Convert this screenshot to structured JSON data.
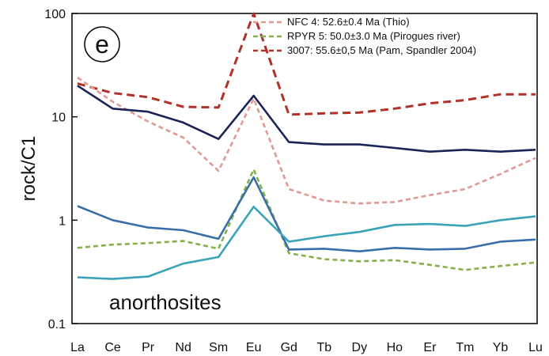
{
  "chart_data": {
    "type": "line",
    "panel_label": "e",
    "ylabel": "rock/C1",
    "xlabel": "",
    "yscale": "log",
    "ylim": [
      0.1,
      100
    ],
    "ytick_values": [
      0.1,
      1,
      10,
      100
    ],
    "ytick_labels": [
      "0.1",
      "1",
      "10",
      "100"
    ],
    "categories": [
      "La",
      "Ce",
      "Pr",
      "Nd",
      "Sm",
      "Eu",
      "Gd",
      "Tb",
      "Dy",
      "Ho",
      "Er",
      "Tm",
      "Yb",
      "Lu"
    ],
    "annotation": "anorthosites",
    "legend_position": "top-right",
    "grid": false,
    "series": [
      {
        "name": "NFC 4: 52.6±0.4 Ma (Thio)",
        "color": "#e09a94",
        "style": "dashed",
        "values": [
          24,
          14,
          9,
          6.3,
          3,
          15,
          2,
          1.55,
          1.45,
          1.5,
          1.75,
          2,
          2.8,
          4
        ]
      },
      {
        "name": "RPYR 5: 50.0±3.0 Ma (Pirogues river)",
        "color": "#86b04a",
        "style": "dashed",
        "values": [
          0.54,
          0.58,
          0.6,
          0.63,
          0.53,
          3.1,
          0.48,
          0.42,
          0.4,
          0.41,
          0.37,
          0.33,
          0.36,
          0.39
        ]
      },
      {
        "name": "3007: 55.6±0,5 Ma (Pam, Spandler 2004)",
        "color": "#b0302a",
        "style": "dashed",
        "values": [
          21,
          17,
          15.5,
          12.5,
          12.3,
          100,
          10.5,
          10.8,
          11,
          12,
          13.5,
          14.5,
          16.5,
          16.5
        ]
      },
      {
        "name": "",
        "color": "#1a2456",
        "style": "solid",
        "values": [
          20,
          12,
          11.2,
          8.8,
          6.1,
          16,
          5.7,
          5.4,
          5.4,
          5,
          4.6,
          4.8,
          4.6,
          4.8
        ]
      },
      {
        "name": "",
        "color": "#3a6ea8",
        "style": "solid",
        "values": [
          1.37,
          1.0,
          0.85,
          0.8,
          0.66,
          2.6,
          0.52,
          0.53,
          0.5,
          0.54,
          0.52,
          0.53,
          0.62,
          0.65
        ]
      },
      {
        "name": "",
        "color": "#3aa3b8",
        "style": "solid",
        "values": [
          0.28,
          0.27,
          0.285,
          0.38,
          0.44,
          1.35,
          0.62,
          0.7,
          0.77,
          0.9,
          0.92,
          0.88,
          1.0,
          1.09
        ]
      }
    ]
  }
}
